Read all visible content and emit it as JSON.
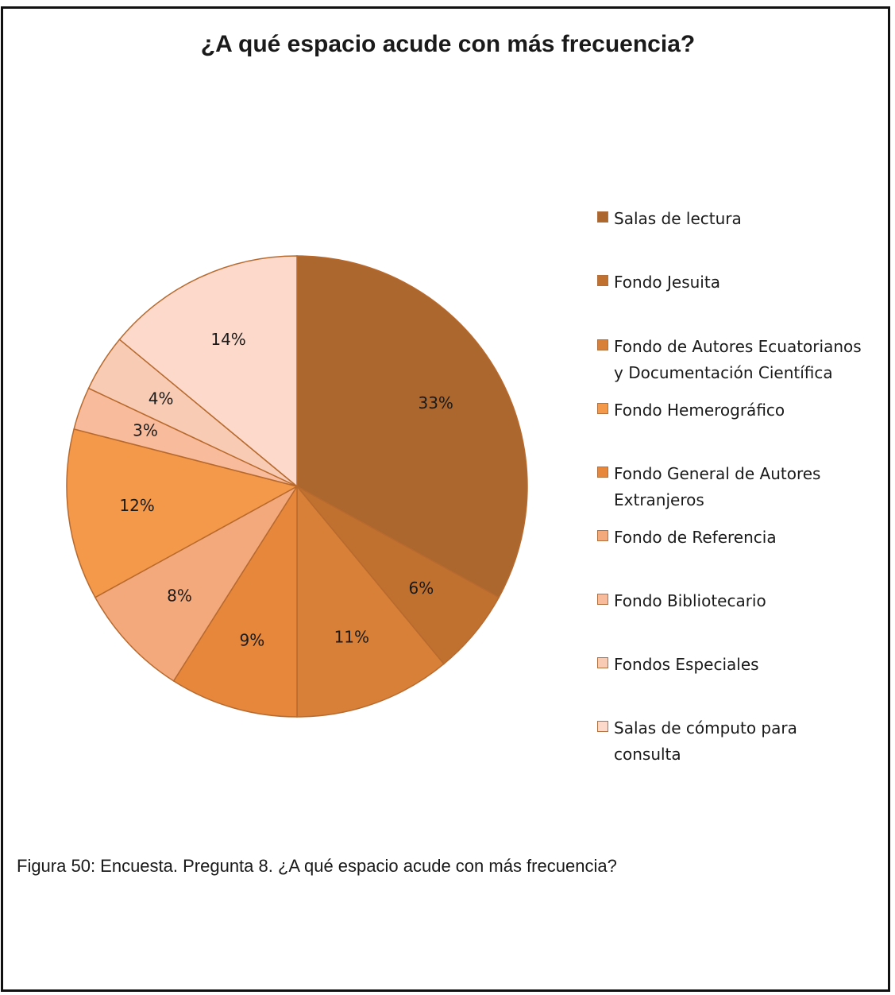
{
  "chart_data": {
    "type": "pie",
    "title": "¿A qué espacio acude con más frecuencia?",
    "legend_position": "right",
    "categories": [
      "Salas de lectura",
      "Fondo Jesuita",
      "Fondo de Autores Ecuatorianos y Documentación Científica",
      "Fondo Hemerográfico",
      "Fondo General de Autores Extranjeros",
      "Fondo de Referencia",
      "Fondo Bibliotecario",
      "Fondos Especiales",
      "Salas de cómputo para consulta"
    ],
    "legend_lines": [
      [
        "Salas de lectura"
      ],
      [
        "Fondo Jesuita"
      ],
      [
        "Fondo de Autores Ecuatorianos",
        "y Documentación Científica"
      ],
      [
        "Fondo Hemerográfico"
      ],
      [
        "Fondo General de Autores",
        "Extranjeros"
      ],
      [
        "Fondo de Referencia"
      ],
      [
        "Fondo Bibliotecario"
      ],
      [
        "Fondos Especiales"
      ],
      [
        "Salas de cómputo para",
        "consulta"
      ]
    ],
    "values": [
      33,
      6,
      11,
      12,
      9,
      8,
      3,
      4,
      14
    ],
    "slice_labels": [
      "33%",
      "6%",
      "11%",
      "12%",
      "9%",
      "8%",
      "3%",
      "4%",
      "14%"
    ],
    "slice_order": [
      0,
      1,
      2,
      4,
      5,
      3,
      6,
      7,
      8
    ],
    "colors": [
      "#ab672e",
      "#c0712f",
      "#d88038",
      "#f4984a",
      "#e6873b",
      "#f4a97c",
      "#f8bb9c",
      "#f8cbb4",
      "#fcd9cb"
    ],
    "edge_color": "#b86a2e"
  },
  "caption": "Figura 50: Encuesta. Pregunta 8. ¿A qué espacio acude con más frecuencia?"
}
